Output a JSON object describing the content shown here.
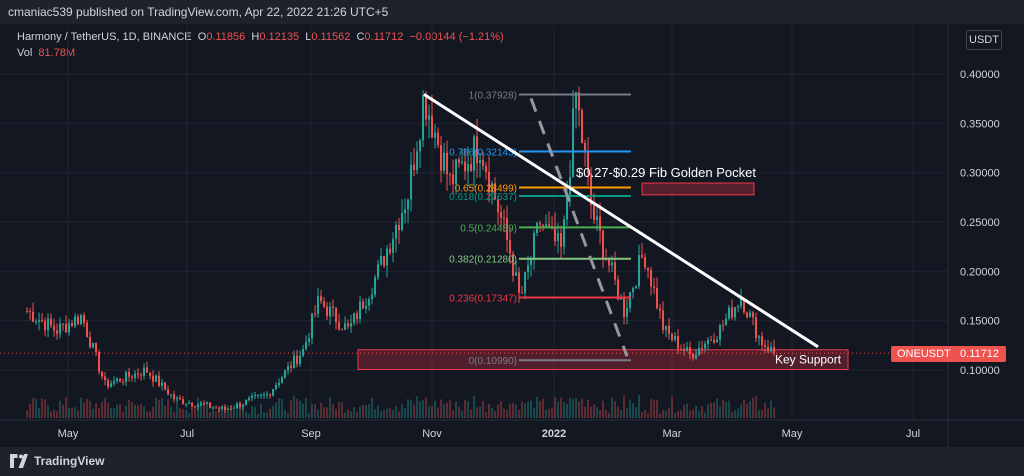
{
  "header": {
    "publisher": "cmaniac539 published on TradingView.com, Apr 22, 2022 21:26 UTC+5"
  },
  "legend": {
    "symbol": "Harmony / TetherUS, 1D, BINANCE",
    "o_label": "O",
    "o": "0.11856",
    "h_label": "H",
    "h": "0.12135",
    "l_label": "L",
    "l": "0.11562",
    "c_label": "C",
    "c": "0.11712",
    "change": "−0.00144 (−1.21%)",
    "vol_label": "Vol",
    "vol": "81.78M"
  },
  "currency_button": "USDT",
  "price_tag": {
    "symbol": "ONEUSDT",
    "value": "0.11712"
  },
  "footer": {
    "brand": "TradingView"
  },
  "colors": {
    "up": "#26a69a",
    "down": "#ef5350",
    "bg": "#131722",
    "trendline": "#ffffff"
  },
  "chart_data": {
    "type": "candlestick",
    "y_axis": {
      "ylim": [
        0.055,
        0.42
      ],
      "ticks": [
        "0.10000",
        "0.15000",
        "0.20000",
        "0.25000",
        "0.30000",
        "0.35000",
        "0.40000"
      ]
    },
    "x_axis": {
      "ticks": [
        "May",
        "Jul",
        "Sep",
        "Nov",
        "2022",
        "Mar",
        "May",
        "Jul"
      ]
    },
    "price_path": [
      [
        "2021-04-10",
        0.16
      ],
      [
        "2021-04-25",
        0.14
      ],
      [
        "2021-05-08",
        0.155
      ],
      [
        "2021-05-20",
        0.085
      ],
      [
        "2021-06-10",
        0.1
      ],
      [
        "2021-06-25",
        0.07
      ],
      [
        "2021-07-20",
        0.06
      ],
      [
        "2021-08-10",
        0.075
      ],
      [
        "2021-08-28",
        0.12
      ],
      [
        "2021-09-05",
        0.17
      ],
      [
        "2021-09-20",
        0.14
      ],
      [
        "2021-10-05",
        0.2
      ],
      [
        "2021-10-20",
        0.28
      ],
      [
        "2021-10-28",
        0.3793
      ],
      [
        "2021-11-10",
        0.29
      ],
      [
        "2021-11-25",
        0.33
      ],
      [
        "2021-12-10",
        0.22
      ],
      [
        "2021-12-15",
        0.17
      ],
      [
        "2021-12-25",
        0.25
      ],
      [
        "2022-01-05",
        0.22
      ],
      [
        "2022-01-12",
        0.3793
      ],
      [
        "2022-01-20",
        0.26
      ],
      [
        "2022-02-05",
        0.16
      ],
      [
        "2022-02-15",
        0.22
      ],
      [
        "2022-02-25",
        0.14
      ],
      [
        "2022-03-10",
        0.115
      ],
      [
        "2022-03-25",
        0.14
      ],
      [
        "2022-04-05",
        0.175
      ],
      [
        "2022-04-15",
        0.13
      ],
      [
        "2022-04-22",
        0.11712
      ]
    ],
    "fib_levels": [
      {
        "label": "1(0.37928)",
        "value": 0.37928,
        "color": "#787b86"
      },
      {
        "label": "0.786(0.32143)",
        "value": 0.32143,
        "color": "#2196f3"
      },
      {
        "label": "0.65(0.28499)",
        "value": 0.28499,
        "color": "#ff9800"
      },
      {
        "label": "0.618(0.27637)",
        "value": 0.27637,
        "color": "#089981"
      },
      {
        "label": "0.5(0.24459)",
        "value": 0.24459,
        "color": "#4caf50"
      },
      {
        "label": "0.382(0.21280)",
        "value": 0.2128,
        "color": "#81c784"
      },
      {
        "label": "0.236(0.17347)",
        "value": 0.17347,
        "color": "#f23645"
      },
      {
        "label": "0(0.10990)",
        "value": 0.1099,
        "color": "#787b86"
      }
    ],
    "annotations": [
      {
        "text": "$0.27-$0.29 Fib Golden Pocket"
      },
      {
        "text": "Key Support"
      }
    ],
    "current_price": 0.11712
  }
}
